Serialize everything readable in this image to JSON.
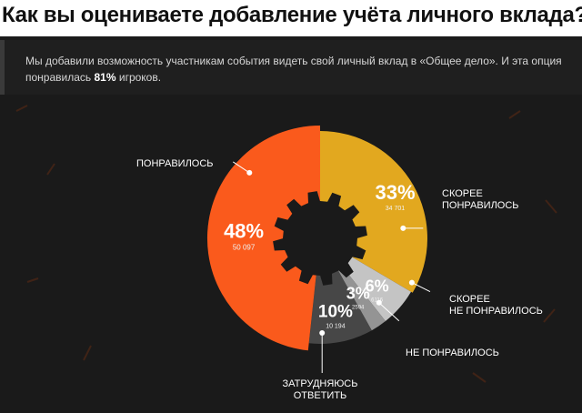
{
  "title": "Как вы оцениваете добавление учёта личного вклада?",
  "intro": {
    "text_before": "Мы добавили возможность участникам события видеть свой личный вклад в «Общее дело». И эта опция понравилась ",
    "highlight": "81%",
    "text_after": " игроков."
  },
  "colors": {
    "background": "#1a1a1a",
    "dark_slice": "#474747",
    "orange": "#fa5a1c",
    "gold": "#e2a81f",
    "light_gray": "#c4c4c4",
    "mid_gray": "#949494"
  },
  "chart_data": {
    "type": "pie",
    "title": "Как вы оцениваете добавление учёта личного вклада?",
    "slices": [
      {
        "label": "Скорее понравилось",
        "label_lines": [
          "Скорее",
          "понравилось"
        ],
        "percent": "33%",
        "count": "34 701",
        "value": 34701
      },
      {
        "label": "Скорее не понравилось",
        "label_lines": [
          "Скорее",
          "не понравилось"
        ],
        "percent": "6%",
        "count": "6116",
        "value": 6116
      },
      {
        "label": "Не понравилось",
        "label_lines": [
          "Не понравилось"
        ],
        "percent": "3%",
        "count": "2594",
        "value": 2594
      },
      {
        "label": "Затрудняюсь ответить",
        "label_lines": [
          "Затрудняюсь",
          "ответить"
        ],
        "percent": "10%",
        "count": "10 194",
        "value": 10194
      },
      {
        "label": "Понравилось",
        "label_lines": [
          "Понравилось"
        ],
        "percent": "48%",
        "count": "50 097",
        "value": 50097
      }
    ]
  }
}
